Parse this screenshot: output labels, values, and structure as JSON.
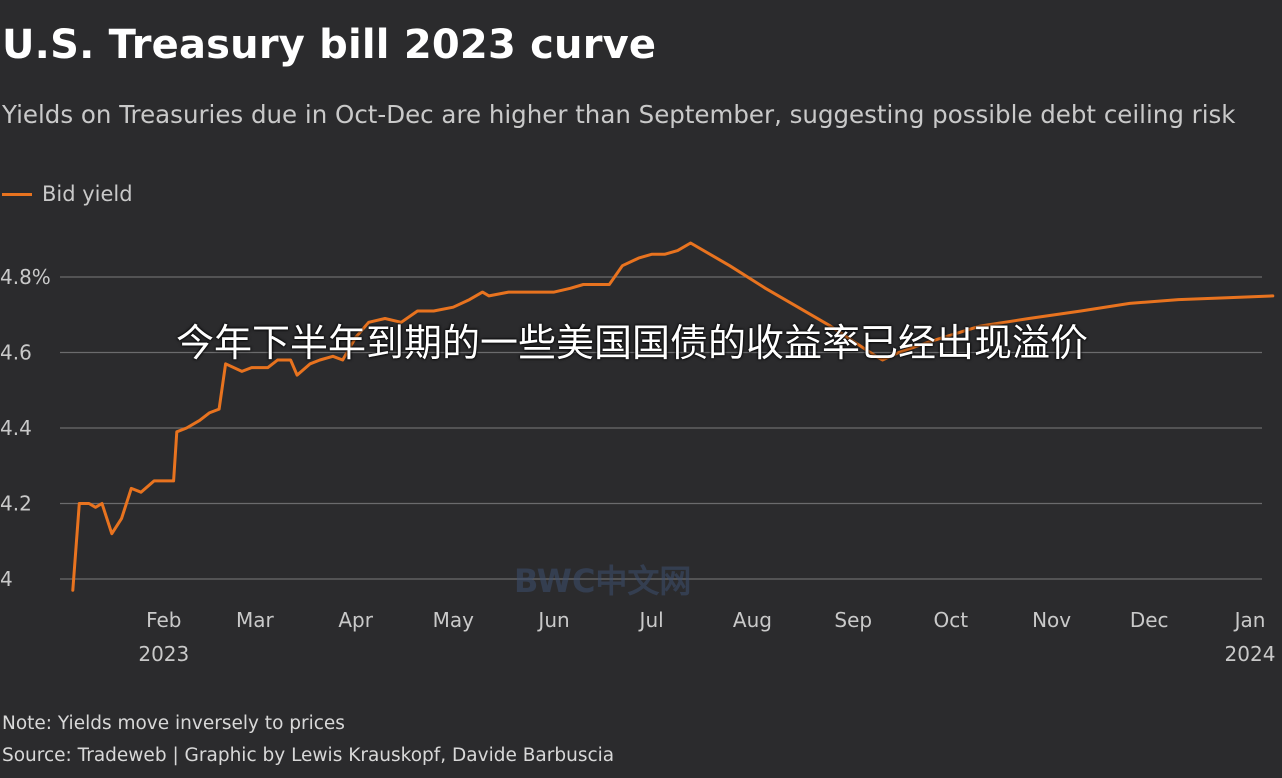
{
  "header": {
    "title": "U.S. Treasury bill 2023 curve",
    "subtitle": "Yields on Treasuries due in Oct-Dec are higher than September, suggesting possible debt ceiling risk"
  },
  "legend": {
    "label": "Bid yield"
  },
  "footer": {
    "note": "Note: Yields move inversely to prices",
    "source": "Source: Tradeweb | Graphic by Lewis Krauskopf, Davide Barbuscia"
  },
  "overlay_caption": "今年下半年到期的一些美国国债的收益率已经出现溢价",
  "watermark": "BWC中文网",
  "colors": {
    "background": "#2b2b2d",
    "line": "#e8731f",
    "grid": "#6b6b6d"
  },
  "chart_data": {
    "type": "line",
    "title": "U.S. Treasury bill 2023 curve",
    "subtitle": "Yields on Treasuries due in Oct-Dec are higher than September, suggesting possible debt ceiling risk",
    "xlabel": "",
    "ylabel": "",
    "legend_position": "top-left",
    "grid": true,
    "ylim": [
      3.96,
      4.9
    ],
    "xlim": [
      "2023-01-01",
      "2024-01-01"
    ],
    "y_ticks": [
      {
        "value": 4.0,
        "label": "4"
      },
      {
        "value": 4.2,
        "label": "4.2"
      },
      {
        "value": 4.4,
        "label": "4.4"
      },
      {
        "value": 4.6,
        "label": "4.6"
      },
      {
        "value": 4.8,
        "label": "4.8%"
      }
    ],
    "x_ticks": [
      {
        "date": "2023-02-01",
        "label": "Feb",
        "sublabel": "2023"
      },
      {
        "date": "2023-03-01",
        "label": "Mar",
        "sublabel": ""
      },
      {
        "date": "2023-04-01",
        "label": "Apr",
        "sublabel": ""
      },
      {
        "date": "2023-05-01",
        "label": "May",
        "sublabel": ""
      },
      {
        "date": "2023-06-01",
        "label": "Jun",
        "sublabel": ""
      },
      {
        "date": "2023-07-01",
        "label": "Jul",
        "sublabel": ""
      },
      {
        "date": "2023-08-01",
        "label": "Aug",
        "sublabel": ""
      },
      {
        "date": "2023-09-01",
        "label": "Sep",
        "sublabel": ""
      },
      {
        "date": "2023-10-01",
        "label": "Oct",
        "sublabel": ""
      },
      {
        "date": "2023-11-01",
        "label": "Nov",
        "sublabel": ""
      },
      {
        "date": "2023-12-01",
        "label": "Dec",
        "sublabel": ""
      },
      {
        "date": "2024-01-01",
        "label": "Jan",
        "sublabel": "2024"
      }
    ],
    "series": [
      {
        "name": "Bid yield",
        "color": "#e8731f",
        "points": [
          [
            "2023-01-04",
            3.97
          ],
          [
            "2023-01-06",
            4.2
          ],
          [
            "2023-01-09",
            4.2
          ],
          [
            "2023-01-11",
            4.19
          ],
          [
            "2023-01-13",
            4.2
          ],
          [
            "2023-01-16",
            4.12
          ],
          [
            "2023-01-19",
            4.16
          ],
          [
            "2023-01-22",
            4.24
          ],
          [
            "2023-01-25",
            4.23
          ],
          [
            "2023-01-29",
            4.26
          ],
          [
            "2023-02-01",
            4.26
          ],
          [
            "2023-02-04",
            4.26
          ],
          [
            "2023-02-05",
            4.39
          ],
          [
            "2023-02-08",
            4.4
          ],
          [
            "2023-02-12",
            4.42
          ],
          [
            "2023-02-15",
            4.44
          ],
          [
            "2023-02-18",
            4.45
          ],
          [
            "2023-02-20",
            4.57
          ],
          [
            "2023-02-25",
            4.55
          ],
          [
            "2023-02-28",
            4.56
          ],
          [
            "2023-03-05",
            4.56
          ],
          [
            "2023-03-08",
            4.58
          ],
          [
            "2023-03-12",
            4.58
          ],
          [
            "2023-03-14",
            4.54
          ],
          [
            "2023-03-18",
            4.57
          ],
          [
            "2023-03-21",
            4.58
          ],
          [
            "2023-03-25",
            4.59
          ],
          [
            "2023-03-28",
            4.58
          ],
          [
            "2023-04-01",
            4.64
          ],
          [
            "2023-04-05",
            4.68
          ],
          [
            "2023-04-10",
            4.69
          ],
          [
            "2023-04-15",
            4.68
          ],
          [
            "2023-04-20",
            4.71
          ],
          [
            "2023-04-25",
            4.71
          ],
          [
            "2023-05-01",
            4.72
          ],
          [
            "2023-05-06",
            4.74
          ],
          [
            "2023-05-10",
            4.76
          ],
          [
            "2023-05-12",
            4.75
          ],
          [
            "2023-05-18",
            4.76
          ],
          [
            "2023-05-25",
            4.76
          ],
          [
            "2023-06-01",
            4.76
          ],
          [
            "2023-06-06",
            4.77
          ],
          [
            "2023-06-10",
            4.78
          ],
          [
            "2023-06-15",
            4.78
          ],
          [
            "2023-06-18",
            4.78
          ],
          [
            "2023-06-22",
            4.83
          ],
          [
            "2023-06-27",
            4.85
          ],
          [
            "2023-07-01",
            4.86
          ],
          [
            "2023-07-05",
            4.86
          ],
          [
            "2023-07-09",
            4.87
          ],
          [
            "2023-07-13",
            4.89
          ],
          [
            "2023-07-25",
            4.83
          ],
          [
            "2023-08-05",
            4.77
          ],
          [
            "2023-08-15",
            4.72
          ],
          [
            "2023-08-25",
            4.67
          ],
          [
            "2023-09-01",
            4.63
          ],
          [
            "2023-09-08",
            4.59
          ],
          [
            "2023-09-10",
            4.58
          ],
          [
            "2023-09-15",
            4.6
          ],
          [
            "2023-09-25",
            4.63
          ],
          [
            "2023-10-10",
            4.67
          ],
          [
            "2023-10-25",
            4.69
          ],
          [
            "2023-11-10",
            4.71
          ],
          [
            "2023-11-25",
            4.73
          ],
          [
            "2023-12-10",
            4.74
          ],
          [
            "2023-12-25",
            4.745
          ],
          [
            "2024-01-08",
            4.75
          ]
        ]
      }
    ]
  }
}
